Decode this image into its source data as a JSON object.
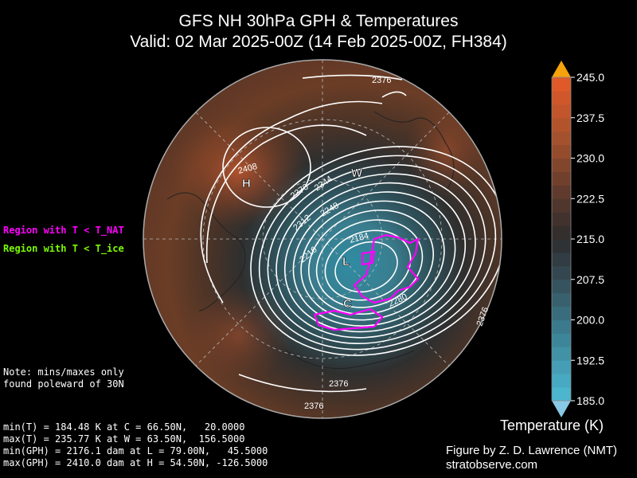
{
  "title": {
    "line1": "GFS NH 30hPa GPH & Temperatures",
    "line2": "Valid: 02 Mar 2025-00Z  (14 Feb 2025-00Z, FH384)"
  },
  "legend": {
    "nat_label": "Region with T < T_NAT",
    "nat_color": "#ff00ff",
    "ice_label": "Region with T < T_ice",
    "ice_color": "#7cfc00"
  },
  "note": {
    "line1": "Note: mins/maxes only",
    "line2": "found poleward of 30N"
  },
  "stats": {
    "min_t": "min(T) = 184.48 K at C = 66.50N,   20.0000",
    "max_t": "max(T) = 235.77 K at W = 63.50N,  156.5000",
    "min_gph": "min(GPH) = 2176.1 dam at L = 79.00N,   45.5000",
    "max_gph": "max(GPH) = 2410.0 dam at H = 54.50N, -126.5000"
  },
  "markers": {
    "H": "H",
    "L": "L",
    "W": "W",
    "C": "C"
  },
  "contour_labels": {
    "l2408": "2408",
    "l2376a": "2376",
    "l2376b": "2376",
    "l2376c": "2376",
    "l2376d": "2376",
    "l2376e": "2376",
    "l2344": "2344",
    "l2312": "2312",
    "l2248": "2248",
    "l2216": "2216",
    "l2184": "2184",
    "l2280": "2280"
  },
  "colorbar": {
    "title": "Temperature (K)",
    "ticks": [
      "245.0",
      "237.5",
      "230.0",
      "222.5",
      "215.0",
      "207.5",
      "200.0",
      "192.5",
      "185.0"
    ]
  },
  "credit": {
    "line1": "Figure by Z. D. Lawrence (NMT)",
    "line2": "stratobserve.com"
  }
}
